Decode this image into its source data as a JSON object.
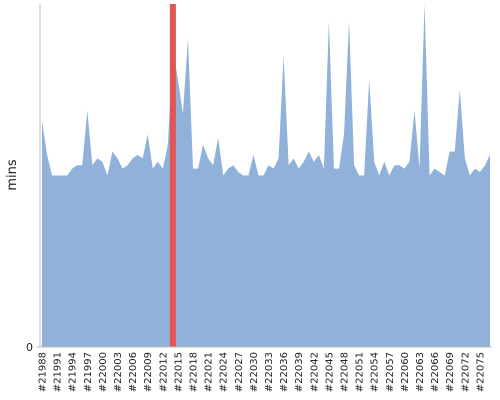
{
  "chart_data": {
    "type": "area",
    "y_label": "mins",
    "categories": [
      "#21988",
      null,
      null,
      "#21991",
      null,
      null,
      "#21994",
      null,
      null,
      "#21997",
      null,
      null,
      "#22000",
      null,
      null,
      "#22003",
      null,
      null,
      "#22006",
      null,
      null,
      "#22009",
      null,
      null,
      "#22012",
      null,
      null,
      "#22015",
      null,
      null,
      "#22018",
      null,
      null,
      "#22021",
      null,
      null,
      "#22024",
      null,
      null,
      "#22027",
      null,
      null,
      "#22030",
      null,
      null,
      "#22033",
      null,
      null,
      "#22036",
      null,
      null,
      "#22039",
      null,
      null,
      "#22042",
      null,
      null,
      "#22045",
      null,
      null,
      "#22048",
      null,
      null,
      "#22051",
      null,
      null,
      "#22054",
      null,
      null,
      "#22057",
      null,
      null,
      "#22060",
      null,
      null,
      "#22063",
      null,
      null,
      "#22066",
      null,
      null,
      "#22069",
      null,
      null,
      "#22072",
      null,
      null,
      "#22075",
      null,
      null
    ],
    "values": [
      66,
      56,
      50,
      50,
      50,
      50,
      52,
      53,
      53,
      69,
      53,
      55,
      54,
      50,
      57,
      55,
      52,
      53,
      55,
      56,
      55,
      62,
      52,
      54,
      52,
      59,
      87,
      78,
      68,
      90,
      52,
      52,
      59,
      55,
      53,
      61,
      50,
      52,
      53,
      51,
      50,
      50,
      56,
      50,
      50,
      53,
      52,
      55,
      85,
      53,
      55,
      52,
      54,
      57,
      54,
      56,
      52,
      95,
      52,
      52,
      62,
      95,
      53,
      50,
      50,
      78,
      54,
      50,
      54,
      50,
      53,
      53,
      52,
      54,
      69,
      52,
      100,
      50,
      52,
      51,
      50,
      57,
      57,
      75,
      55,
      50,
      52,
      51,
      53,
      56
    ],
    "color": "#8fb1da",
    "ylim": [
      0,
      100
    ],
    "yticks": [
      0
    ],
    "highlight": {
      "index": 26,
      "color": "#e05555"
    }
  }
}
